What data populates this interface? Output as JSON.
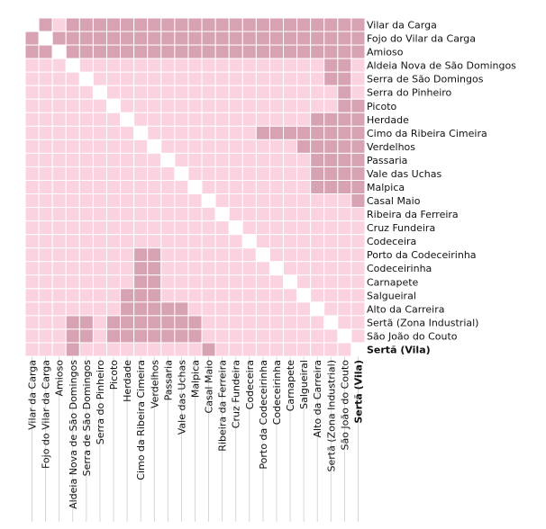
{
  "chart_data": {
    "type": "heatmap",
    "title": "",
    "labels": [
      "Vilar da Carga",
      "Fojo do Vilar da Carga",
      "Amioso",
      "Aldeia Nova de São Domingos",
      "Serra de São Domingos",
      "Serra do Pinheiro",
      "Picoto",
      "Herdade",
      "Cimo da Ribeira Cimeira",
      "Verdelhos",
      "Passaria",
      "Vale das Uchas",
      "Malpica",
      "Casal Maio",
      "Ribeira da Ferreira",
      "Cruz Fundeira",
      "Codeceira",
      "Porto da Codeceirinha",
      "Codeceirinha",
      "Carnapete",
      "Salgueiral",
      "Alto da Carreira",
      "Sertã (Zona Industrial)",
      "São João do Couto",
      "Sertã (Vila)"
    ],
    "highlight_label": "Sertã (Vila)",
    "levels": [
      "light",
      "dark"
    ],
    "colors": {
      "light": "#fbd2e0",
      "dark": "#d7a2b1",
      "diagonal": "#ffffff",
      "grid": "#ffffff",
      "guide": "#cccccc"
    },
    "dark_cells": [
      [
        1,
        0
      ],
      [
        3,
        0
      ],
      [
        4,
        0
      ],
      [
        5,
        0
      ],
      [
        6,
        0
      ],
      [
        7,
        0
      ],
      [
        8,
        0
      ],
      [
        9,
        0
      ],
      [
        10,
        0
      ],
      [
        11,
        0
      ],
      [
        12,
        0
      ],
      [
        13,
        0
      ],
      [
        14,
        0
      ],
      [
        15,
        0
      ],
      [
        16,
        0
      ],
      [
        17,
        0
      ],
      [
        18,
        0
      ],
      [
        19,
        0
      ],
      [
        20,
        0
      ],
      [
        21,
        0
      ],
      [
        22,
        0
      ],
      [
        23,
        0
      ],
      [
        24,
        0
      ],
      [
        3,
        1
      ],
      [
        4,
        1
      ],
      [
        5,
        1
      ],
      [
        6,
        1
      ],
      [
        7,
        1
      ],
      [
        8,
        1
      ],
      [
        9,
        1
      ],
      [
        10,
        1
      ],
      [
        11,
        1
      ],
      [
        12,
        1
      ],
      [
        13,
        1
      ],
      [
        14,
        1
      ],
      [
        15,
        1
      ],
      [
        16,
        1
      ],
      [
        17,
        1
      ],
      [
        18,
        1
      ],
      [
        19,
        1
      ],
      [
        20,
        1
      ],
      [
        21,
        1
      ],
      [
        22,
        1
      ],
      [
        23,
        1
      ],
      [
        24,
        1
      ],
      [
        3,
        2
      ],
      [
        4,
        2
      ],
      [
        5,
        2
      ],
      [
        6,
        2
      ],
      [
        7,
        2
      ],
      [
        8,
        2
      ],
      [
        9,
        2
      ],
      [
        10,
        2
      ],
      [
        11,
        2
      ],
      [
        12,
        2
      ],
      [
        13,
        2
      ],
      [
        14,
        2
      ],
      [
        15,
        2
      ],
      [
        16,
        2
      ],
      [
        17,
        2
      ],
      [
        18,
        2
      ],
      [
        19,
        2
      ],
      [
        20,
        2
      ],
      [
        21,
        2
      ],
      [
        22,
        2
      ],
      [
        23,
        2
      ],
      [
        24,
        2
      ],
      [
        0,
        1
      ],
      [
        2,
        1
      ],
      [
        0,
        2
      ],
      [
        1,
        2
      ],
      [
        22,
        3
      ],
      [
        23,
        3
      ],
      [
        22,
        4
      ],
      [
        23,
        4
      ],
      [
        23,
        5
      ],
      [
        23,
        6
      ],
      [
        24,
        6
      ],
      [
        21,
        7
      ],
      [
        22,
        7
      ],
      [
        23,
        7
      ],
      [
        24,
        7
      ],
      [
        17,
        8
      ],
      [
        18,
        8
      ],
      [
        19,
        8
      ],
      [
        20,
        8
      ],
      [
        21,
        8
      ],
      [
        22,
        8
      ],
      [
        23,
        8
      ],
      [
        24,
        8
      ],
      [
        20,
        9
      ],
      [
        21,
        9
      ],
      [
        22,
        9
      ],
      [
        23,
        9
      ],
      [
        24,
        9
      ],
      [
        21,
        10
      ],
      [
        22,
        10
      ],
      [
        23,
        10
      ],
      [
        24,
        10
      ],
      [
        21,
        11
      ],
      [
        22,
        11
      ],
      [
        23,
        11
      ],
      [
        24,
        11
      ],
      [
        21,
        12
      ],
      [
        22,
        12
      ],
      [
        23,
        12
      ],
      [
        24,
        12
      ],
      [
        24,
        13
      ],
      [
        8,
        17
      ],
      [
        9,
        17
      ],
      [
        8,
        18
      ],
      [
        9,
        18
      ],
      [
        8,
        19
      ],
      [
        9,
        19
      ],
      [
        7,
        20
      ],
      [
        8,
        20
      ],
      [
        9,
        20
      ],
      [
        7,
        21
      ],
      [
        8,
        21
      ],
      [
        9,
        21
      ],
      [
        10,
        21
      ],
      [
        11,
        21
      ],
      [
        3,
        22
      ],
      [
        4,
        22
      ],
      [
        6,
        22
      ],
      [
        7,
        22
      ],
      [
        8,
        22
      ],
      [
        9,
        22
      ],
      [
        10,
        22
      ],
      [
        11,
        22
      ],
      [
        12,
        22
      ],
      [
        3,
        23
      ],
      [
        4,
        23
      ],
      [
        6,
        23
      ],
      [
        7,
        23
      ],
      [
        8,
        23
      ],
      [
        9,
        23
      ],
      [
        10,
        23
      ],
      [
        11,
        23
      ],
      [
        12,
        23
      ],
      [
        3,
        24
      ],
      [
        13,
        24
      ]
    ]
  }
}
